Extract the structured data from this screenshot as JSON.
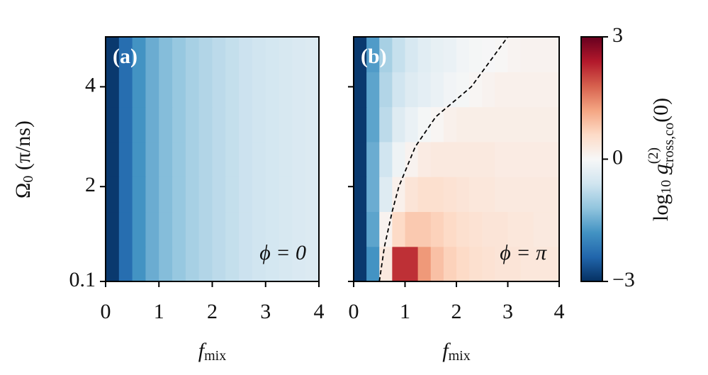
{
  "chart_data": [
    {
      "type": "heatmap",
      "panel_label": "(a)",
      "annotation": "ϕ = 0",
      "xlabel": "f",
      "xlabel_sub": "mix",
      "ylabel": "Ω",
      "ylabel_sub": "0",
      "ylabel_unit": " (π/ns)",
      "xlim": [
        0,
        4
      ],
      "ylim": [
        0.1,
        5
      ],
      "xticks": [
        0,
        1,
        2,
        3,
        4
      ],
      "yticks": [
        0.1,
        2,
        4
      ],
      "show_ytick_labels": true,
      "xbins": [
        0,
        0.25,
        0.5,
        0.75,
        1,
        1.25,
        1.5,
        1.75,
        2,
        2.25,
        2.5,
        2.75,
        3,
        3.25,
        3.5,
        3.75,
        4
      ],
      "ybins": [
        0.1,
        0.8,
        1.5,
        2.2,
        2.9,
        3.6,
        4.3,
        5.0
      ],
      "z": [
        [
          -2.9,
          -2.3,
          -1.8,
          -1.5,
          -1.3,
          -1.15,
          -1.0,
          -0.9,
          -0.8,
          -0.72,
          -0.65,
          -0.6,
          -0.55,
          -0.5,
          -0.46,
          -0.43
        ],
        [
          -2.9,
          -2.3,
          -1.8,
          -1.5,
          -1.3,
          -1.15,
          -1.0,
          -0.9,
          -0.8,
          -0.72,
          -0.65,
          -0.6,
          -0.55,
          -0.5,
          -0.46,
          -0.43
        ],
        [
          -2.9,
          -2.3,
          -1.8,
          -1.5,
          -1.3,
          -1.15,
          -1.0,
          -0.9,
          -0.8,
          -0.72,
          -0.65,
          -0.6,
          -0.55,
          -0.5,
          -0.46,
          -0.43
        ],
        [
          -2.9,
          -2.3,
          -1.8,
          -1.5,
          -1.3,
          -1.15,
          -1.0,
          -0.9,
          -0.8,
          -0.72,
          -0.65,
          -0.6,
          -0.55,
          -0.5,
          -0.46,
          -0.43
        ],
        [
          -2.9,
          -2.3,
          -1.8,
          -1.5,
          -1.3,
          -1.15,
          -1.0,
          -0.9,
          -0.8,
          -0.72,
          -0.65,
          -0.6,
          -0.55,
          -0.5,
          -0.46,
          -0.43
        ],
        [
          -2.9,
          -2.3,
          -1.8,
          -1.5,
          -1.3,
          -1.15,
          -1.0,
          -0.9,
          -0.8,
          -0.72,
          -0.65,
          -0.6,
          -0.55,
          -0.5,
          -0.46,
          -0.43
        ],
        [
          -2.9,
          -2.3,
          -1.8,
          -1.5,
          -1.3,
          -1.15,
          -1.0,
          -0.9,
          -0.8,
          -0.72,
          -0.65,
          -0.6,
          -0.55,
          -0.5,
          -0.46,
          -0.43
        ]
      ]
    },
    {
      "type": "heatmap",
      "panel_label": "(b)",
      "annotation": "ϕ = π",
      "xlabel": "f",
      "xlabel_sub": "mix",
      "xlim": [
        0,
        4
      ],
      "ylim": [
        0.1,
        5
      ],
      "xticks": [
        0,
        1,
        2,
        3,
        4
      ],
      "yticks": [
        0.1,
        2,
        4
      ],
      "show_ytick_labels": false,
      "xbins": [
        0,
        0.25,
        0.5,
        0.75,
        1,
        1.25,
        1.5,
        1.75,
        2,
        2.25,
        2.5,
        2.75,
        3,
        3.25,
        3.5,
        3.75,
        4
      ],
      "ybins": [
        0.1,
        0.8,
        1.5,
        2.2,
        2.9,
        3.6,
        4.3,
        5.0
      ],
      "z": [
        [
          -2.9,
          -1.8,
          0.3,
          2.2,
          2.2,
          1.3,
          0.9,
          0.7,
          0.6,
          0.5,
          0.45,
          0.4,
          0.4,
          0.35,
          0.35,
          0.35
        ],
        [
          -2.9,
          -1.6,
          0.1,
          0.6,
          0.8,
          0.8,
          0.7,
          0.6,
          0.5,
          0.45,
          0.4,
          0.4,
          0.35,
          0.35,
          0.3,
          0.3
        ],
        [
          -2.9,
          -1.5,
          -0.4,
          0.15,
          0.4,
          0.5,
          0.5,
          0.45,
          0.4,
          0.35,
          0.35,
          0.3,
          0.3,
          0.3,
          0.3,
          0.3
        ],
        [
          -2.9,
          -1.5,
          -0.6,
          -0.15,
          0.1,
          0.25,
          0.3,
          0.3,
          0.3,
          0.3,
          0.3,
          0.25,
          0.25,
          0.25,
          0.25,
          0.25
        ],
        [
          -2.9,
          -1.6,
          -0.8,
          -0.4,
          -0.2,
          -0.05,
          0.05,
          0.15,
          0.2,
          0.2,
          0.2,
          0.2,
          0.2,
          0.2,
          0.2,
          0.2
        ],
        [
          -2.9,
          -1.6,
          -0.9,
          -0.6,
          -0.4,
          -0.3,
          -0.2,
          -0.1,
          -0.05,
          0.05,
          0.1,
          0.15,
          0.15,
          0.15,
          0.15,
          0.15
        ],
        [
          -2.9,
          -1.7,
          -1.0,
          -0.7,
          -0.5,
          -0.35,
          -0.25,
          -0.2,
          -0.1,
          -0.05,
          -0.02,
          0.03,
          0.08,
          0.1,
          0.1,
          0.1
        ]
      ],
      "contour": {
        "x": [
          0.5,
          0.6,
          0.75,
          0.88,
          1.2,
          1.6,
          2.29,
          3.0
        ],
        "y": [
          0.1,
          0.8,
          1.5,
          2.0,
          2.8,
          3.4,
          4.0,
          5.0
        ],
        "color": "#000000",
        "dashed": true
      }
    }
  ],
  "colorbar": {
    "clim": [
      -3,
      3
    ],
    "ticks": [
      {
        "value": -3,
        "label": "−3"
      },
      0,
      3
    ],
    "colormap": [
      "#053061",
      "#2166ac",
      "#4393c3",
      "#92c5de",
      "#d1e5f0",
      "#f7f7f7",
      "#fddbc7",
      "#f4a582",
      "#d6604d",
      "#b2182b",
      "#67001f"
    ],
    "label_log": "log",
    "label_log_sub": "10",
    "label_g": " g",
    "label_g_sup": "(2)",
    "label_g_sub": "cross,co",
    "label_arg": "(0)"
  }
}
